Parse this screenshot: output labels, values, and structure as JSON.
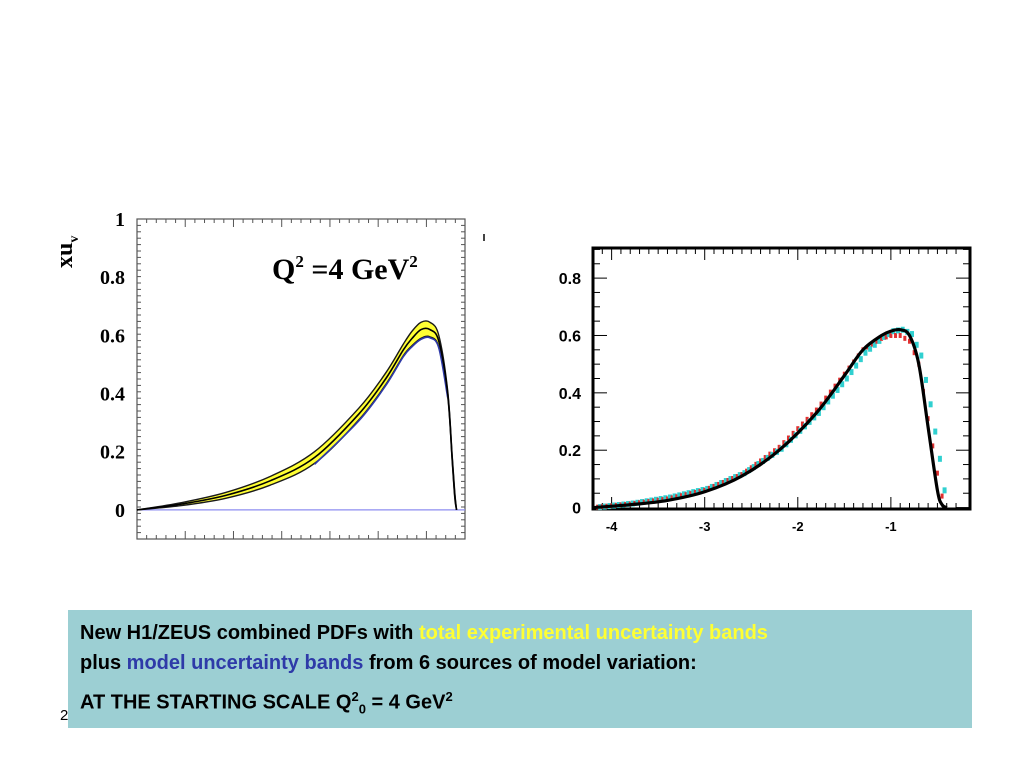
{
  "colors": {
    "band_experimental": "#ffff33",
    "band_model": "#2e3aa8",
    "central_curve": "#000000",
    "caption_bg": "#9ccfd3",
    "marker_red": "#e03030",
    "marker_cyan": "#30d0d0"
  },
  "chart_data": [
    {
      "type": "area",
      "title": "Q² =4 GeV²",
      "title_main": "Q",
      "title_sup": "2",
      "title_rest": " =4 GeV",
      "title_sup2": "2",
      "ylabel": "xu",
      "ylabel_sub": "v",
      "ylim": [
        -0.1,
        1.0
      ],
      "yticks": [
        0,
        0.2,
        0.4,
        0.6,
        0.8,
        1
      ],
      "ytick_labels": [
        "0",
        "0.2",
        "0.4",
        "0.6",
        "0.8",
        "1"
      ],
      "log_x": [
        -4.0,
        -3.5,
        -3.0,
        -2.5,
        -2.0,
        -1.5,
        -1.2,
        -1.0,
        -0.9,
        -0.8,
        -0.7,
        -0.6,
        -0.5,
        -0.45,
        -0.42,
        -0.4
      ],
      "central": [
        0.0,
        0.02,
        0.05,
        0.1,
        0.18,
        0.33,
        0.45,
        0.55,
        0.59,
        0.62,
        0.62,
        0.58,
        0.4,
        0.18,
        0.05,
        0.0
      ],
      "upper": [
        0.0,
        0.025,
        0.06,
        0.115,
        0.2,
        0.35,
        0.47,
        0.57,
        0.615,
        0.645,
        0.645,
        0.6,
        0.41,
        0.19,
        0.06,
        0.0
      ],
      "lower": [
        0.0,
        0.015,
        0.04,
        0.085,
        0.16,
        0.31,
        0.43,
        0.53,
        0.565,
        0.59,
        0.595,
        0.56,
        0.39,
        0.17,
        0.04,
        0.0
      ],
      "band": "experimental + model uncertainty"
    },
    {
      "type": "scatter",
      "xlim": [
        -4.2,
        -0.15
      ],
      "ylim": [
        -0.0,
        0.9
      ],
      "xticks": [
        -4,
        -3,
        -2,
        -1
      ],
      "xtick_labels": [
        "-4",
        "-3",
        "-2",
        "-1"
      ],
      "yticks": [
        0,
        0.2,
        0.4,
        0.6,
        0.8
      ],
      "ytick_labels": [
        "0",
        "0.2",
        "0.4",
        "0.6",
        "0.8"
      ],
      "log_x": [
        -4.2,
        -3.8,
        -3.4,
        -3.0,
        -2.6,
        -2.2,
        -1.8,
        -1.5,
        -1.3,
        -1.1,
        -1.0,
        -0.9,
        -0.8,
        -0.7,
        -0.6,
        -0.5,
        -0.45,
        -0.4
      ],
      "central": [
        0.0,
        0.01,
        0.025,
        0.055,
        0.11,
        0.2,
        0.33,
        0.46,
        0.55,
        0.6,
        0.615,
        0.62,
        0.6,
        0.5,
        0.28,
        0.06,
        0.01,
        0.0
      ],
      "variation_red": [
        0.0,
        0.012,
        0.03,
        0.06,
        0.115,
        0.21,
        0.34,
        0.465,
        0.55,
        0.59,
        0.6,
        0.6,
        0.58,
        0.5,
        0.31,
        0.12,
        0.04,
        0.0
      ],
      "variation_cyan": [
        0.0,
        0.014,
        0.035,
        0.065,
        0.12,
        0.205,
        0.33,
        0.45,
        0.54,
        0.595,
        0.615,
        0.62,
        0.605,
        0.53,
        0.36,
        0.17,
        0.06,
        0.0
      ]
    }
  ],
  "caption": {
    "line1_a": "New H1/ZEUS combined PDFs with ",
    "line1_b": "total experimental uncertainty bands",
    "line2_a": "plus ",
    "line2_b": "model uncertainty bands",
    "line2_c": " from 6 sources of model variation:",
    "line3_a": "AT THE STARTING SCALE Q",
    "line3_sup": "2",
    "line3_sub": "0",
    "line3_b": " = 4 GeV",
    "line3_sup2": "2"
  },
  "slide_number": "2"
}
